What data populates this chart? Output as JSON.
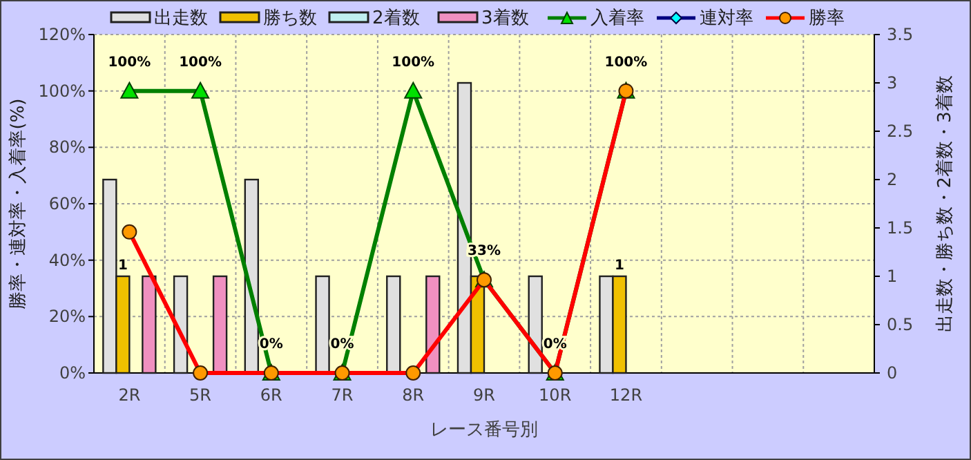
{
  "chart_data": {
    "type": "bar",
    "xlabel": "レース番号別",
    "ylabel": "勝率・連対率・入着率(%)",
    "y2label": "出走数・勝ち数・2着数・3着数",
    "categories": [
      "2R",
      "5R",
      "6R",
      "7R",
      "8R",
      "9R",
      "10R",
      "12R",
      null,
      null,
      null
    ],
    "series": [
      {
        "name": "出走数",
        "axis": "y2",
        "color": "#e0e0e0",
        "values": [
          2,
          1,
          2,
          1,
          1,
          3,
          1,
          1,
          null,
          null,
          null
        ]
      },
      {
        "name": "勝ち数",
        "axis": "y2",
        "color": "#f0c000",
        "values": [
          1,
          0,
          0,
          0,
          0,
          1,
          0,
          1,
          null,
          null,
          null
        ],
        "value_labels": [
          "1",
          null,
          null,
          null,
          null,
          null,
          null,
          "1",
          null,
          null,
          null
        ]
      },
      {
        "name": "2着数",
        "axis": "y2",
        "color": "#c0f0f0",
        "values": [
          0,
          0,
          0,
          0,
          0,
          0,
          0,
          0,
          null,
          null,
          null
        ]
      },
      {
        "name": "3着数",
        "axis": "y2",
        "color": "#f090c0",
        "values": [
          1,
          1,
          0,
          0,
          1,
          0,
          0,
          0,
          null,
          null,
          null
        ]
      },
      {
        "name": "入着率",
        "type": "line",
        "color": "#008000",
        "marker": "triangle",
        "values": [
          100,
          100,
          0,
          0,
          100,
          33,
          0,
          100,
          null,
          null,
          null
        ],
        "value_labels": [
          "100%",
          "100%",
          "0%",
          "0%",
          "100%",
          "33%",
          "0%",
          "100%",
          null,
          null,
          null
        ]
      },
      {
        "name": "連対率",
        "type": "line",
        "color": "#000080",
        "marker": "diamond",
        "values": [
          null,
          null,
          null,
          null,
          null,
          null,
          null,
          null,
          null,
          null,
          null
        ]
      },
      {
        "name": "勝率",
        "type": "line",
        "color": "#ff0000",
        "marker": "circle",
        "values": [
          50,
          0,
          0,
          0,
          0,
          33,
          0,
          100,
          null,
          null,
          null
        ]
      }
    ],
    "ylim": [
      0,
      120
    ],
    "yticks": [
      {
        "value": 0,
        "label": "0%"
      },
      {
        "value": 20,
        "label": "20%"
      },
      {
        "value": 40,
        "label": "40%"
      },
      {
        "value": 60,
        "label": "60%"
      },
      {
        "value": 80,
        "label": "80%"
      },
      {
        "value": 100,
        "label": "100%"
      },
      {
        "value": 120,
        "label": "120%"
      }
    ],
    "y2lim": [
      0,
      3.5
    ],
    "y2ticks": [
      0,
      0.5,
      1,
      1.5,
      2,
      2.5,
      3,
      3.5
    ],
    "grid": true,
    "legend": "top"
  }
}
